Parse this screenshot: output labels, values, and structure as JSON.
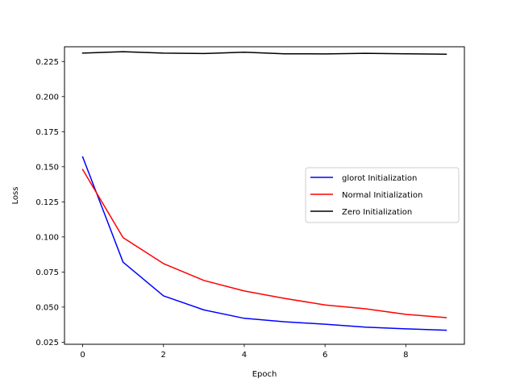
{
  "chart_data": {
    "type": "line",
    "title": "",
    "xlabel": "Epoch",
    "ylabel": "Loss",
    "xlim": [
      -0.45,
      9.45
    ],
    "ylim": [
      0.0235,
      0.2355
    ],
    "x": [
      0,
      1,
      2,
      3,
      4,
      5,
      6,
      7,
      8,
      9
    ],
    "x_ticks": [
      0,
      2,
      4,
      6,
      8
    ],
    "x_tick_labels": [
      "0",
      "2",
      "4",
      "6",
      "8"
    ],
    "y_ticks": [
      0.025,
      0.05,
      0.075,
      0.1,
      0.125,
      0.15,
      0.175,
      0.2,
      0.225
    ],
    "y_tick_labels": [
      "0.025",
      "0.050",
      "0.075",
      "0.100",
      "0.125",
      "0.150",
      "0.175",
      "0.200",
      "0.225"
    ],
    "grid": false,
    "legend_position": "center-right",
    "series": [
      {
        "name": "glorot Initialization",
        "color": "#0000ff",
        "values": [
          0.157,
          0.082,
          0.058,
          0.048,
          0.042,
          0.0395,
          0.0378,
          0.0357,
          0.0345,
          0.0335
        ]
      },
      {
        "name": "Normal Initialization",
        "color": "#ff0000",
        "values": [
          0.148,
          0.0995,
          0.081,
          0.069,
          0.0615,
          0.0562,
          0.0515,
          0.0488,
          0.0448,
          0.0425
        ]
      },
      {
        "name": "Zero Initialization",
        "color": "#000000",
        "values": [
          0.231,
          0.232,
          0.231,
          0.2307,
          0.2316,
          0.2305,
          0.2304,
          0.2308,
          0.2305,
          0.2302
        ]
      }
    ]
  }
}
